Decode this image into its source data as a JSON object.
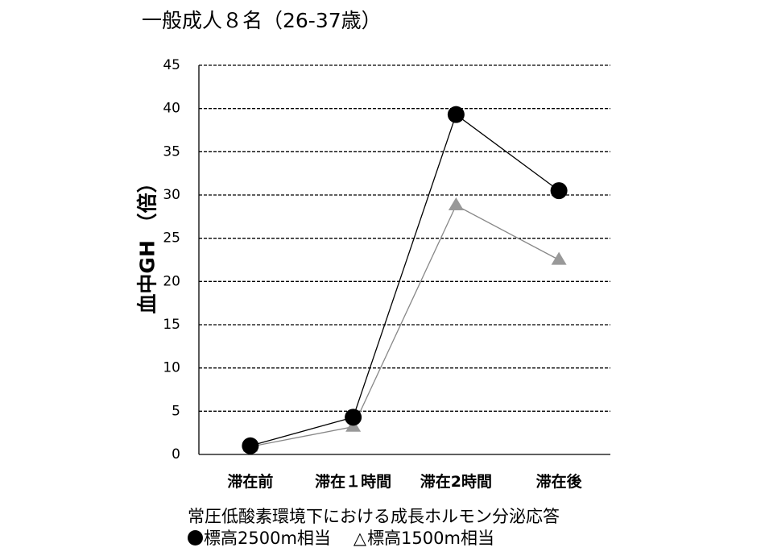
{
  "chart_data": {
    "type": "line",
    "title": "一般成人８名（26-37歳）",
    "ylabel": "血中GH （倍）",
    "xlabel": "",
    "categories": [
      "滞在前",
      "滞在１時間",
      "滞在2時間",
      "滞在後"
    ],
    "ylim": [
      0,
      45
    ],
    "yticks": [
      "0",
      "5",
      "10",
      "15",
      "20",
      "25",
      "30",
      "35",
      "40",
      "45"
    ],
    "grid": "horizontal dashed",
    "series": [
      {
        "name": "標高2500m相当",
        "marker": "circle",
        "color": "#000000",
        "values": [
          1,
          4.3,
          39.3,
          30.5
        ]
      },
      {
        "name": "標高1500m相当",
        "marker": "triangle",
        "color": "#999999",
        "line_color": "#888888",
        "values": [
          0.9,
          3.2,
          28.8,
          22.5
        ]
      }
    ]
  },
  "caption": {
    "line1": "常圧低酸素環境下における成長ホルモン分泌応答",
    "legend_circle_label": "標高2500m相当",
    "legend_triangle_symbol": "△",
    "legend_triangle_label": "標高1500m相当"
  }
}
